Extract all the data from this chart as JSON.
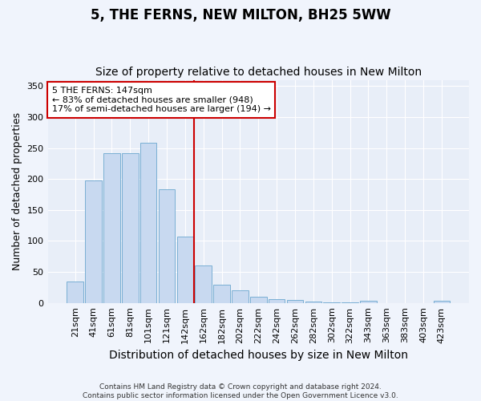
{
  "title": "5, THE FERNS, NEW MILTON, BH25 5WW",
  "subtitle": "Size of property relative to detached houses in New Milton",
  "xlabel": "Distribution of detached houses by size in New Milton",
  "ylabel": "Number of detached properties",
  "bar_labels": [
    "21sqm",
    "41sqm",
    "61sqm",
    "81sqm",
    "101sqm",
    "121sqm",
    "142sqm",
    "162sqm",
    "182sqm",
    "202sqm",
    "222sqm",
    "242sqm",
    "262sqm",
    "282sqm",
    "302sqm",
    "322sqm",
    "343sqm",
    "363sqm",
    "383sqm",
    "403sqm",
    "423sqm"
  ],
  "bar_heights": [
    35,
    198,
    242,
    242,
    258,
    183,
    107,
    60,
    30,
    20,
    10,
    6,
    5,
    2,
    1,
    1,
    3,
    0,
    0,
    0,
    3
  ],
  "bar_color": "#c8d9f0",
  "bar_edge_color": "#7aafd4",
  "ylim": [
    0,
    360
  ],
  "yticks": [
    0,
    50,
    100,
    150,
    200,
    250,
    300,
    350
  ],
  "vline_color": "#cc0000",
  "annotation_line1": "5 THE FERNS: 147sqm",
  "annotation_line2": "← 83% of detached houses are smaller (948)",
  "annotation_line3": "17% of semi-detached houses are larger (194) →",
  "annotation_box_color": "#cc0000",
  "bg_color": "#e8eef8",
  "grid_color": "#ffffff",
  "footer_text": "Contains HM Land Registry data © Crown copyright and database right 2024.\nContains public sector information licensed under the Open Government Licence v3.0.",
  "title_fontsize": 12,
  "subtitle_fontsize": 10,
  "xlabel_fontsize": 10,
  "ylabel_fontsize": 9,
  "tick_fontsize": 8,
  "annotation_fontsize": 8,
  "footer_fontsize": 6.5
}
